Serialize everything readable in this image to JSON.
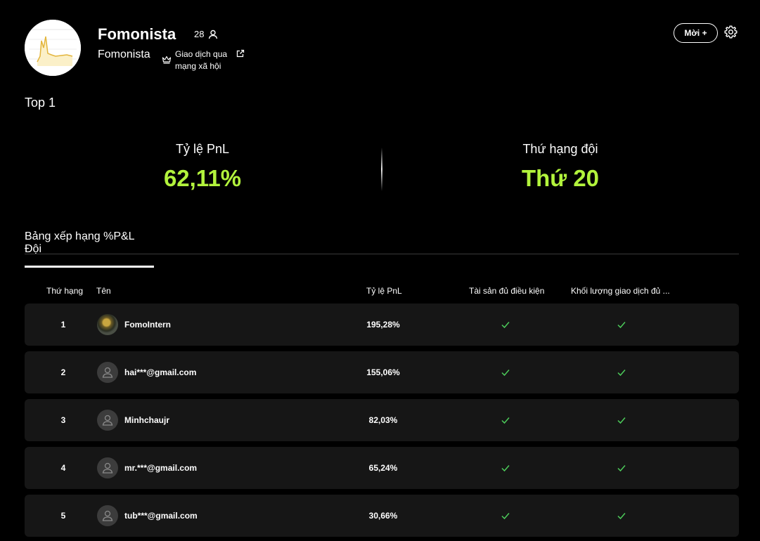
{
  "header": {
    "team_name": "Fomonista",
    "member_count": "28",
    "sub_name": "Fomonista",
    "tag": "Giao dịch qua mạng xã hội",
    "invite_label": "Mời +"
  },
  "top_label": "Top 1",
  "stats": {
    "pnl_label": "Tỷ lệ PnL",
    "pnl_value": "62,11%",
    "rank_label": "Thứ hạng đội",
    "rank_value": "Thứ 20"
  },
  "tab_label": "Bảng xếp hạng %P&L Đội",
  "table": {
    "headers": [
      "Thứ hạng",
      "Tên",
      "Tỷ lệ PnL",
      "Tài sản đủ điều kiện",
      "Khối lượng giao dịch đủ ..."
    ],
    "rows": [
      {
        "rank": "1",
        "name": "FomoIntern",
        "pnl": "195,28%"
      },
      {
        "rank": "2",
        "name": "hai***@gmail.com",
        "pnl": "155,06%"
      },
      {
        "rank": "3",
        "name": "Minhchaujr",
        "pnl": "82,03%"
      },
      {
        "rank": "4",
        "name": "mr.***@gmail.com",
        "pnl": "65,24%"
      },
      {
        "rank": "5",
        "name": "tub***@gmail.com",
        "pnl": "30,66%"
      }
    ]
  },
  "colors": {
    "accent": "#b2f33c",
    "check": "#4ccb5a",
    "row_bg": "#161616"
  }
}
